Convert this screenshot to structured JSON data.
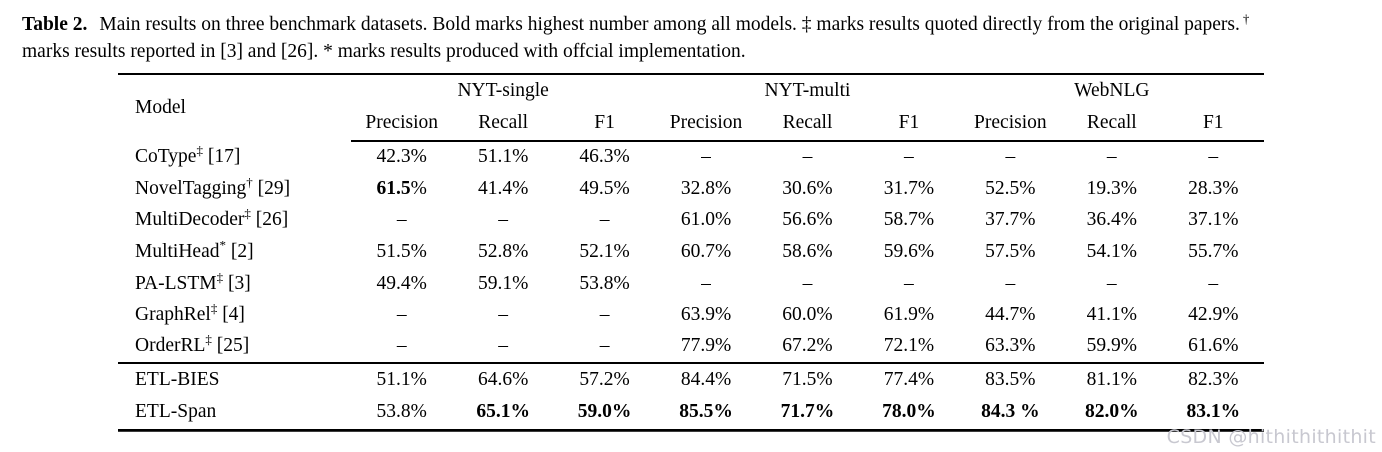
{
  "caption": {
    "label": "Table 2.",
    "line1": "Main results on three benchmark datasets. Bold marks highest number among all models. ‡ marks results quoted directly from the original papers.",
    "line1_sup": "†",
    "line2": "marks results reported in [3] and [26]. * marks results produced with offcial implementation."
  },
  "table": {
    "model_header": "Model",
    "groups": [
      {
        "label": "NYT-single"
      },
      {
        "label": "NYT-multi"
      },
      {
        "label": "WebNLG"
      }
    ],
    "subheaders": [
      "Precision",
      "Recall",
      "F1"
    ],
    "rows": [
      {
        "model": "CoType",
        "sup": "‡",
        "ref": "[17]",
        "rule_above": false,
        "section": "baseline",
        "cells": [
          "42.3%",
          "51.1%",
          "46.3%",
          "–",
          "–",
          "–",
          "–",
          "–",
          "–"
        ],
        "bold": [
          0,
          0,
          0,
          0,
          0,
          0,
          0,
          0,
          0
        ]
      },
      {
        "model": "NovelTagging",
        "sup": "†",
        "ref": "[29]",
        "rule_above": false,
        "section": "baseline",
        "cells": [
          "61.5%",
          "41.4%",
          "49.5%",
          "32.8%",
          "30.6%",
          "31.7%",
          "52.5%",
          "19.3%",
          "28.3%"
        ],
        "bold": [
          2,
          0,
          0,
          0,
          0,
          0,
          0,
          0,
          0
        ]
      },
      {
        "model": "MultiDecoder",
        "sup": "‡",
        "ref": "[26]",
        "rule_above": false,
        "section": "baseline",
        "cells": [
          "–",
          "–",
          "–",
          "61.0%",
          "56.6%",
          "58.7%",
          "37.7%",
          "36.4%",
          "37.1%"
        ],
        "bold": [
          0,
          0,
          0,
          0,
          0,
          0,
          0,
          0,
          0
        ]
      },
      {
        "model": "MultiHead",
        "sup": "*",
        "ref": "[2]",
        "rule_above": false,
        "section": "baseline",
        "cells": [
          "51.5%",
          "52.8%",
          "52.1%",
          "60.7%",
          "58.6%",
          "59.6%",
          "57.5%",
          "54.1%",
          "55.7%"
        ],
        "bold": [
          0,
          0,
          0,
          0,
          0,
          0,
          0,
          0,
          0
        ]
      },
      {
        "model": "PA-LSTM",
        "sup": "‡",
        "ref": "[3]",
        "rule_above": false,
        "section": "baseline",
        "cells": [
          "49.4%",
          "59.1%",
          "53.8%",
          "–",
          "–",
          "–",
          "–",
          "–",
          "–"
        ],
        "bold": [
          0,
          0,
          0,
          0,
          0,
          0,
          0,
          0,
          0
        ]
      },
      {
        "model": "GraphRel",
        "sup": "‡",
        "ref": "[4]",
        "rule_above": false,
        "section": "baseline",
        "cells": [
          "–",
          "–",
          "–",
          "63.9%",
          "60.0%",
          "61.9%",
          "44.7%",
          "41.1%",
          "42.9%"
        ],
        "bold": [
          0,
          0,
          0,
          0,
          0,
          0,
          0,
          0,
          0
        ]
      },
      {
        "model": "OrderRL",
        "sup": "‡",
        "ref": "[25]",
        "rule_above": false,
        "section": "baseline",
        "cells": [
          "–",
          "–",
          "–",
          "77.9%",
          "67.2%",
          "72.1%",
          "63.3%",
          "59.9%",
          "61.6%"
        ],
        "bold": [
          0,
          0,
          0,
          0,
          0,
          0,
          0,
          0,
          0
        ]
      },
      {
        "model": "ETL-BIES",
        "sup": "",
        "ref": "",
        "rule_above": true,
        "section": "ours",
        "cells": [
          "51.1%",
          "64.6%",
          "57.2%",
          "84.4%",
          "71.5%",
          "77.4%",
          "83.5%",
          "81.1%",
          "82.3%"
        ],
        "bold": [
          0,
          0,
          0,
          0,
          0,
          0,
          0,
          0,
          0
        ]
      },
      {
        "model": "ETL-Span",
        "sup": "",
        "ref": "",
        "rule_above": false,
        "section": "ours",
        "cells": [
          "53.8%",
          "65.1%",
          "59.0%",
          "85.5%",
          "71.7%",
          "78.0%",
          "84.3 %",
          "82.0%",
          "83.1%"
        ],
        "bold": [
          0,
          1,
          1,
          1,
          1,
          1,
          1,
          1,
          1
        ]
      }
    ]
  },
  "watermark": "CSDN @hithithithithit"
}
